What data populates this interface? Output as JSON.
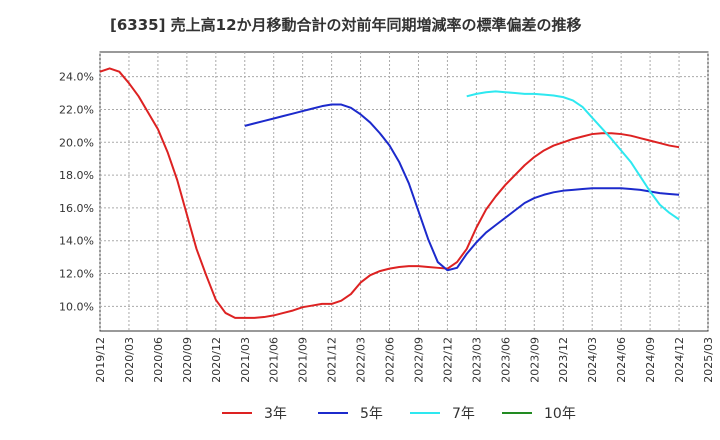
{
  "chart_data": {
    "type": "line",
    "title": "[6335]  売上高12か月移動合計の対前年同期増減率の標準偏差の推移",
    "xlabel": "",
    "ylabel": "",
    "x_ticks": [
      "2019/12",
      "2020/03",
      "2020/06",
      "2020/09",
      "2020/12",
      "2021/03",
      "2021/06",
      "2021/09",
      "2021/12",
      "2022/03",
      "2022/06",
      "2022/09",
      "2022/12",
      "2023/03",
      "2023/06",
      "2023/09",
      "2023/12",
      "2024/03",
      "2024/06",
      "2024/09",
      "2024/12",
      "2025/03"
    ],
    "y_ticks": [
      "10.0%",
      "12.0%",
      "14.0%",
      "16.0%",
      "18.0%",
      "20.0%",
      "22.0%",
      "24.0%"
    ],
    "y_tick_values": [
      10,
      12,
      14,
      16,
      18,
      20,
      22,
      24
    ],
    "ylim": [
      8.5,
      25.5
    ],
    "xlim": [
      "2019/12",
      "2025/03"
    ],
    "grid": true,
    "legend_position": "bottom",
    "series": [
      {
        "name": "3年",
        "color": "#dd2222",
        "x": [
          "2019/12",
          "2020/01",
          "2020/02",
          "2020/03",
          "2020/04",
          "2020/05",
          "2020/06",
          "2020/07",
          "2020/08",
          "2020/09",
          "2020/10",
          "2020/11",
          "2020/12",
          "2021/01",
          "2021/02",
          "2021/03",
          "2021/04",
          "2021/05",
          "2021/06",
          "2021/07",
          "2021/08",
          "2021/09",
          "2021/10",
          "2021/11",
          "2021/12",
          "2022/01",
          "2022/02",
          "2022/03",
          "2022/04",
          "2022/05",
          "2022/06",
          "2022/07",
          "2022/08",
          "2022/09",
          "2022/10",
          "2022/11",
          "2022/12",
          "2023/01",
          "2023/02",
          "2023/03",
          "2023/04",
          "2023/05",
          "2023/06",
          "2023/07",
          "2023/08",
          "2023/09",
          "2023/10",
          "2023/11",
          "2023/12",
          "2024/01",
          "2024/02",
          "2024/03",
          "2024/04",
          "2024/05",
          "2024/06",
          "2024/07",
          "2024/08",
          "2024/09",
          "2024/10",
          "2024/11",
          "2024/12"
        ],
        "values": [
          24.3,
          24.5,
          24.3,
          23.6,
          22.8,
          21.8,
          20.8,
          19.4,
          17.7,
          15.6,
          13.5,
          11.9,
          10.4,
          9.6,
          9.3,
          9.3,
          9.3,
          9.35,
          9.45,
          9.6,
          9.75,
          9.95,
          10.05,
          10.15,
          10.15,
          10.35,
          10.75,
          11.45,
          11.9,
          12.15,
          12.3,
          12.4,
          12.45,
          12.45,
          12.4,
          12.35,
          12.3,
          12.7,
          13.5,
          14.8,
          15.9,
          16.7,
          17.4,
          18.0,
          18.6,
          19.1,
          19.5,
          19.8,
          20.0,
          20.2,
          20.35,
          20.5,
          20.55,
          20.55,
          20.5,
          20.4,
          20.25,
          20.1,
          19.95,
          19.8,
          19.7
        ]
      },
      {
        "name": "5年",
        "color": "#1c2acc",
        "x": [
          "2021/03",
          "2021/04",
          "2021/05",
          "2021/06",
          "2021/07",
          "2021/08",
          "2021/09",
          "2021/10",
          "2021/11",
          "2021/12",
          "2022/01",
          "2022/02",
          "2022/03",
          "2022/04",
          "2022/05",
          "2022/06",
          "2022/07",
          "2022/08",
          "2022/09",
          "2022/10",
          "2022/11",
          "2022/12",
          "2023/01",
          "2023/02",
          "2023/03",
          "2023/04",
          "2023/05",
          "2023/06",
          "2023/07",
          "2023/08",
          "2023/09",
          "2023/10",
          "2023/11",
          "2023/12",
          "2024/01",
          "2024/02",
          "2024/03",
          "2024/04",
          "2024/05",
          "2024/06",
          "2024/07",
          "2024/08",
          "2024/09",
          "2024/10",
          "2024/11",
          "2024/12"
        ],
        "values": [
          21.0,
          21.15,
          21.3,
          21.45,
          21.6,
          21.75,
          21.9,
          22.05,
          22.2,
          22.3,
          22.3,
          22.1,
          21.7,
          21.2,
          20.55,
          19.8,
          18.8,
          17.5,
          15.8,
          14.1,
          12.7,
          12.2,
          12.35,
          13.2,
          13.9,
          14.5,
          14.95,
          15.4,
          15.85,
          16.3,
          16.6,
          16.8,
          16.95,
          17.05,
          17.1,
          17.15,
          17.2,
          17.2,
          17.2,
          17.2,
          17.15,
          17.1,
          17.0,
          16.9,
          16.85,
          16.8
        ]
      },
      {
        "name": "7年",
        "color": "#2ee8f0",
        "x": [
          "2023/02",
          "2023/03",
          "2023/04",
          "2023/05",
          "2023/06",
          "2023/07",
          "2023/08",
          "2023/09",
          "2023/10",
          "2023/11",
          "2023/12",
          "2024/01",
          "2024/02",
          "2024/03",
          "2024/04",
          "2024/05",
          "2024/06",
          "2024/07",
          "2024/08",
          "2024/09",
          "2024/10",
          "2024/11",
          "2024/12"
        ],
        "values": [
          22.8,
          22.95,
          23.05,
          23.1,
          23.05,
          23.0,
          22.95,
          22.95,
          22.9,
          22.85,
          22.75,
          22.55,
          22.15,
          21.5,
          20.85,
          20.2,
          19.5,
          18.8,
          17.9,
          17.0,
          16.2,
          15.7,
          15.3
        ]
      },
      {
        "name": "10年",
        "color": "#228b22",
        "x": [],
        "values": []
      }
    ]
  }
}
